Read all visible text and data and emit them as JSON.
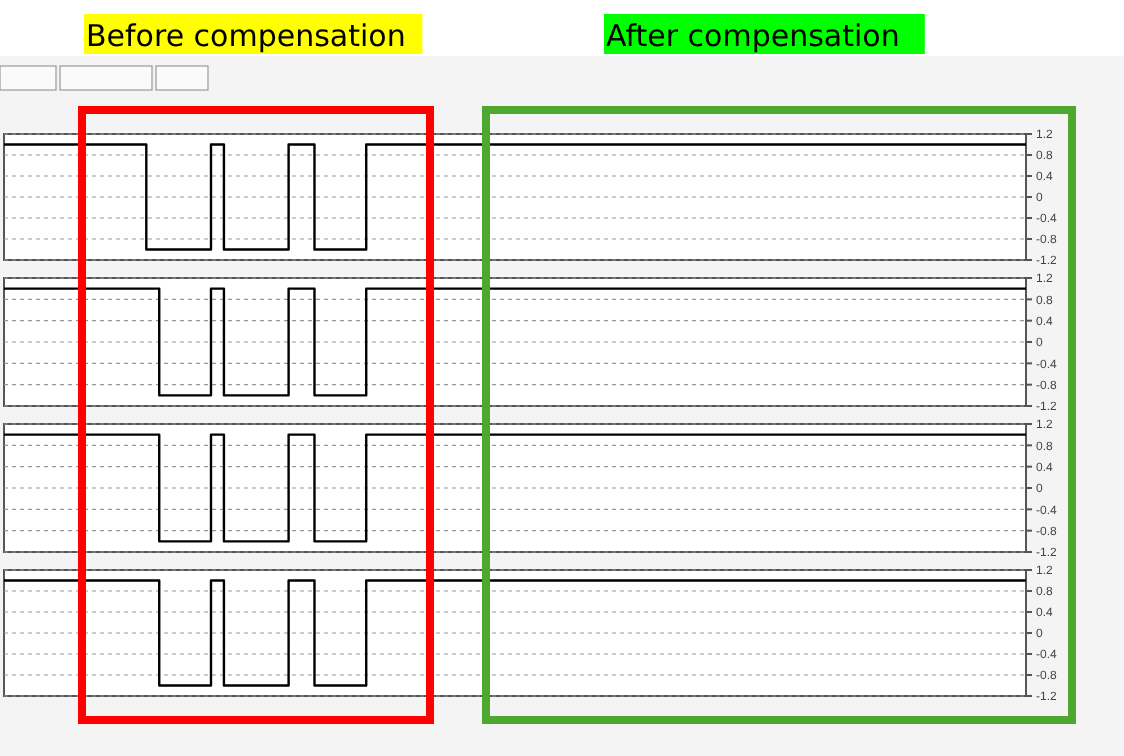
{
  "chart_data": [
    {
      "type": "step",
      "annotations": [
        "Before compensation",
        "After compensation"
      ],
      "categories": [
        null,
        null,
        null,
        null,
        null,
        null,
        null,
        null,
        null,
        null,
        null,
        null,
        null,
        null,
        null,
        null,
        null,
        null,
        null,
        null,
        null,
        null,
        null,
        null,
        null,
        null,
        null,
        null,
        null,
        null,
        null,
        null,
        null,
        null,
        null,
        null,
        null,
        null,
        null,
        null,
        null,
        null,
        null,
        null,
        null,
        null,
        null,
        null,
        null,
        null,
        null,
        null,
        null,
        null,
        null,
        null,
        null,
        null,
        null,
        null,
        null,
        null,
        null,
        null,
        null,
        null,
        null,
        null,
        null,
        null,
        null,
        null,
        null,
        null,
        null,
        null,
        null,
        null,
        null,
        null
      ],
      "series": [
        {
          "color": "#000000",
          "values": [
            1,
            1,
            1,
            1,
            1,
            1,
            1,
            1,
            1,
            1,
            1,
            -1,
            -1,
            -1,
            -1,
            -1,
            1,
            -1,
            -1,
            -1,
            -1,
            -1,
            1,
            1,
            -1,
            -1,
            -1,
            -1,
            1,
            1,
            1,
            1,
            1,
            1,
            1,
            1,
            1,
            1,
            1,
            1,
            1,
            1,
            1,
            1,
            1,
            1,
            1,
            1,
            1,
            1,
            1,
            1,
            1,
            1,
            1,
            1,
            1,
            1,
            1,
            1,
            1,
            1,
            1,
            1,
            1,
            1,
            1,
            1,
            1,
            1,
            1,
            1,
            1,
            1,
            1,
            1,
            1,
            1,
            1,
            1
          ]
        }
      ],
      "ylim": [
        -1.2,
        1.2
      ],
      "yticks": [
        1.2,
        0.8,
        0.4,
        0,
        -0.4,
        -0.8,
        -1.2
      ],
      "grid": "y",
      "tick_labels": "y"
    },
    {
      "type": "step",
      "categories": [
        null,
        null,
        null,
        null,
        null,
        null,
        null,
        null,
        null,
        null,
        null,
        null,
        null,
        null,
        null,
        null,
        null,
        null,
        null,
        null,
        null,
        null,
        null,
        null,
        null,
        null,
        null,
        null,
        null,
        null,
        null,
        null,
        null,
        null,
        null,
        null,
        null,
        null,
        null,
        null,
        null,
        null,
        null,
        null,
        null,
        null,
        null,
        null,
        null,
        null,
        null,
        null,
        null,
        null,
        null,
        null,
        null,
        null,
        null,
        null,
        null,
        null,
        null,
        null,
        null,
        null,
        null,
        null,
        null,
        null,
        null,
        null,
        null,
        null,
        null,
        null,
        null,
        null,
        null,
        null
      ],
      "series": [
        {
          "color": "#000000",
          "values": [
            1,
            1,
            1,
            1,
            1,
            1,
            1,
            1,
            1,
            1,
            1,
            1,
            -1,
            -1,
            -1,
            -1,
            1,
            -1,
            -1,
            -1,
            -1,
            -1,
            1,
            1,
            -1,
            -1,
            -1,
            -1,
            1,
            1,
            1,
            1,
            1,
            1,
            1,
            1,
            1,
            1,
            1,
            1,
            1,
            1,
            1,
            1,
            1,
            1,
            1,
            1,
            1,
            1,
            1,
            1,
            1,
            1,
            1,
            1,
            1,
            1,
            1,
            1,
            1,
            1,
            1,
            1,
            1,
            1,
            1,
            1,
            1,
            1,
            1,
            1,
            1,
            1,
            1,
            1,
            1,
            1,
            1,
            1
          ]
        }
      ],
      "ylim": [
        -1.2,
        1.2
      ],
      "yticks": [
        1.2,
        0.8,
        0.4,
        0,
        -0.4,
        -0.8,
        -1.2
      ],
      "grid": "y",
      "tick_labels": "y"
    },
    {
      "type": "step",
      "categories": [
        null,
        null,
        null,
        null,
        null,
        null,
        null,
        null,
        null,
        null,
        null,
        null,
        null,
        null,
        null,
        null,
        null,
        null,
        null,
        null,
        null,
        null,
        null,
        null,
        null,
        null,
        null,
        null,
        null,
        null,
        null,
        null,
        null,
        null,
        null,
        null,
        null,
        null,
        null,
        null,
        null,
        null,
        null,
        null,
        null,
        null,
        null,
        null,
        null,
        null,
        null,
        null,
        null,
        null,
        null,
        null,
        null,
        null,
        null,
        null,
        null,
        null,
        null,
        null,
        null,
        null,
        null,
        null,
        null,
        null,
        null,
        null,
        null,
        null,
        null,
        null,
        null,
        null,
        null,
        null
      ],
      "series": [
        {
          "color": "#000000",
          "values": [
            1,
            1,
            1,
            1,
            1,
            1,
            1,
            1,
            1,
            1,
            1,
            1,
            -1,
            -1,
            -1,
            -1,
            1,
            -1,
            -1,
            -1,
            -1,
            -1,
            1,
            1,
            -1,
            -1,
            -1,
            -1,
            1,
            1,
            1,
            1,
            1,
            1,
            1,
            1,
            1,
            1,
            1,
            1,
            1,
            1,
            1,
            1,
            1,
            1,
            1,
            1,
            1,
            1,
            1,
            1,
            1,
            1,
            1,
            1,
            1,
            1,
            1,
            1,
            1,
            1,
            1,
            1,
            1,
            1,
            1,
            1,
            1,
            1,
            1,
            1,
            1,
            1,
            1,
            1,
            1,
            1,
            1,
            1
          ]
        }
      ],
      "ylim": [
        -1.2,
        1.2
      ],
      "yticks": [
        1.2,
        0.8,
        0.4,
        0,
        -0.4,
        -0.8,
        -1.2
      ],
      "grid": "y",
      "tick_labels": "y"
    },
    {
      "type": "step",
      "categories": [
        null,
        null,
        null,
        null,
        null,
        null,
        null,
        null,
        null,
        null,
        null,
        null,
        null,
        null,
        null,
        null,
        null,
        null,
        null,
        null,
        null,
        null,
        null,
        null,
        null,
        null,
        null,
        null,
        null,
        null,
        null,
        null,
        null,
        null,
        null,
        null,
        null,
        null,
        null,
        null,
        null,
        null,
        null,
        null,
        null,
        null,
        null,
        null,
        null,
        null,
        null,
        null,
        null,
        null,
        null,
        null,
        null,
        null,
        null,
        null,
        null,
        null,
        null,
        null,
        null,
        null,
        null,
        null,
        null,
        null,
        null,
        null,
        null,
        null,
        null,
        null,
        null,
        null,
        null,
        null
      ],
      "series": [
        {
          "color": "#000000",
          "values": [
            1,
            1,
            1,
            1,
            1,
            1,
            1,
            1,
            1,
            1,
            1,
            1,
            -1,
            -1,
            -1,
            -1,
            1,
            -1,
            -1,
            -1,
            -1,
            -1,
            1,
            1,
            -1,
            -1,
            -1,
            -1,
            1,
            1,
            1,
            1,
            1,
            1,
            1,
            1,
            1,
            1,
            1,
            1,
            1,
            1,
            1,
            1,
            1,
            1,
            1,
            1,
            1,
            1,
            1,
            1,
            1,
            1,
            1,
            1,
            1,
            1,
            1,
            1,
            1,
            1,
            1,
            1,
            1,
            1,
            1,
            1,
            1,
            1,
            1,
            1,
            1,
            1,
            1,
            1,
            1,
            1,
            1,
            1
          ]
        }
      ],
      "ylim": [
        -1.2,
        1.2
      ],
      "yticks": [
        1.2,
        0.8,
        0.4,
        0,
        -0.4,
        -0.8,
        -1.2
      ],
      "grid": "y",
      "tick_labels": "y"
    }
  ]
}
